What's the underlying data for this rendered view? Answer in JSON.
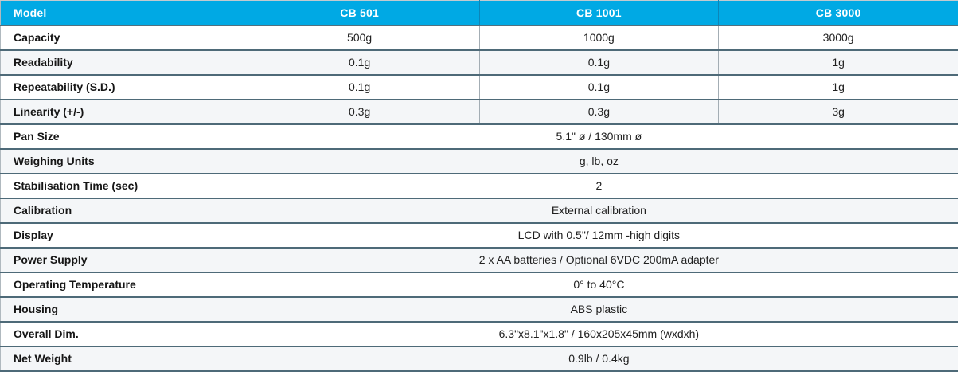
{
  "table": {
    "title": "balance-specification-table",
    "header": {
      "model_label": "Model",
      "columns": [
        "CB 501",
        "CB 1001",
        "CB 3000"
      ]
    },
    "rows": [
      {
        "label": "Capacity",
        "values": [
          "500g",
          "1000g",
          "3000g"
        ]
      },
      {
        "label": "Readability",
        "values": [
          "0.1g",
          "0.1g",
          "1g"
        ]
      },
      {
        "label": "Repeatability (S.D.)",
        "values": [
          "0.1g",
          "0.1g",
          "1g"
        ]
      },
      {
        "label": "Linearity (+/-)",
        "values": [
          "0.3g",
          "0.3g",
          "3g"
        ]
      },
      {
        "label": "Pan Size",
        "span_value": "5.1\" ø / 130mm ø"
      },
      {
        "label": "Weighing Units",
        "span_value": "g, lb, oz"
      },
      {
        "label": "Stabilisation Time (sec)",
        "span_value": "2"
      },
      {
        "label": "Calibration",
        "span_value": "External calibration"
      },
      {
        "label": "Display",
        "span_value": "LCD with 0.5\"/ 12mm -high digits"
      },
      {
        "label": "Power Supply",
        "span_value": "2 x AA batteries / Optional 6VDC 200mA adapter"
      },
      {
        "label": "Operating Temperature",
        "span_value": "0° to 40°C"
      },
      {
        "label": "Housing",
        "span_value": "ABS plastic"
      },
      {
        "label": "Overall Dim.",
        "span_value": "6.3\"x8.1\"x1.8\" / 160x205x45mm (wxdxh)"
      },
      {
        "label": "Net Weight",
        "span_value": "0.9lb / 0.4kg"
      }
    ],
    "colors": {
      "header_bg": "#00a9e4",
      "header_divider": "#0c85b8",
      "header_text": "#ffffff",
      "row_bg": "#ffffff",
      "row_alt_bg": "#f4f6f8",
      "horizontal_border": "#4e6a78",
      "vertical_border": "#a3adb4",
      "label_text": "#161616",
      "value_text": "#212121"
    }
  }
}
